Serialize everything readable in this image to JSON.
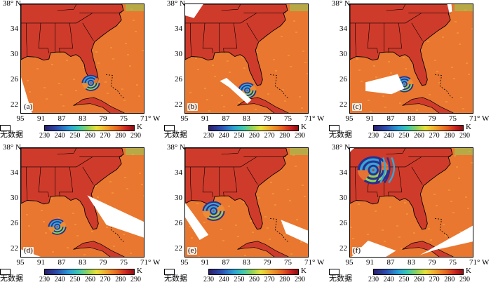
{
  "map": {
    "lat_labels": [
      "38° N",
      "34",
      "30",
      "26",
      "22"
    ],
    "lon_labels": [
      "95",
      "91",
      "87",
      "83",
      "79",
      "75",
      "71° W"
    ],
    "legend": {
      "nodata_label": "无数据",
      "colorbar_ticks": [
        "230",
        "240",
        "250",
        "260",
        "270",
        "280",
        "290"
      ],
      "unit": "K"
    },
    "colors": {
      "land": "#cf3b2b",
      "ocean": "#e9772f",
      "warm_ocean": "#f29a3a",
      "cloud_cold": "#2b2f8f",
      "cloud_mid": "#34a6d8",
      "cloud_cool": "#8fd35b",
      "nodata": "#ffffff",
      "coast": "#000000"
    },
    "panels": [
      {
        "label": "(a)",
        "cyclone": {
          "lon": -81.5,
          "lat": 25.5
        }
      },
      {
        "label": "(b)",
        "cyclone": {
          "lon": -83.0,
          "lat": 24.3
        }
      },
      {
        "label": "(c)",
        "cyclone": {
          "lon": -84.5,
          "lat": 25.3
        }
      },
      {
        "label": "(d)",
        "cyclone": {
          "lon": -88.0,
          "lat": 25.5
        }
      },
      {
        "label": "(e)",
        "cyclone": {
          "lon": -89.5,
          "lat": 28.0
        }
      },
      {
        "label": "(f)",
        "cyclone": {
          "lon": -90.5,
          "lat": 34.5
        }
      }
    ]
  }
}
